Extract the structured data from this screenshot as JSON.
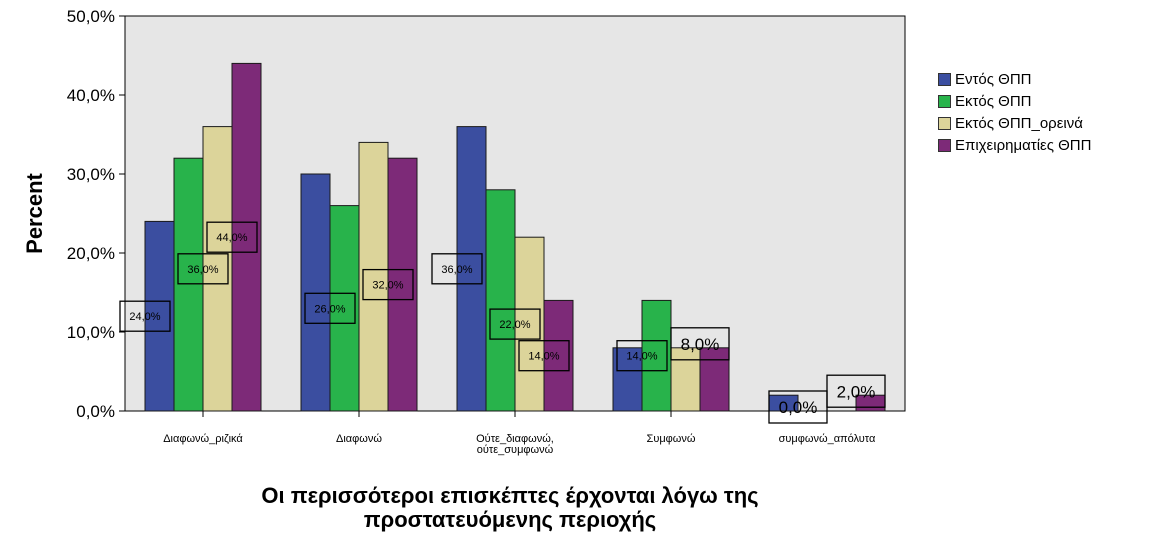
{
  "chart_data": {
    "type": "bar",
    "ylabel": "Percent",
    "xlabel_lines": [
      "Οι περισσότεροι επισκέπτες έρχονται λόγω της",
      "προστατευόμενης περιοχής"
    ],
    "ylim": [
      0,
      50
    ],
    "yticks": [
      "0,0%",
      "10,0%",
      "20,0%",
      "30,0%",
      "40,0%",
      "50,0%"
    ],
    "categories": [
      [
        "Διαφωνώ_ριζικά"
      ],
      [
        "Διαφωνώ"
      ],
      [
        "Ούτε_διαφωνώ,",
        "ούτε_συμφωνώ"
      ],
      [
        "Συμφωνώ"
      ],
      [
        "συμφωνώ_απόλυτα"
      ]
    ],
    "series": [
      {
        "name": "Εντός ΘΠΠ",
        "color": "#3b4ea0",
        "values": [
          24,
          30,
          36,
          8,
          2
        ]
      },
      {
        "name": "Εκτός ΘΠΠ",
        "color": "#28b34b",
        "values": [
          32,
          26,
          28,
          14,
          0
        ]
      },
      {
        "name": "Εκτός ΘΠΠ_ορεινά",
        "color": "#dcd49a",
        "values": [
          36,
          34,
          22,
          8,
          0
        ]
      },
      {
        "name": "Επιχειρηματίες ΘΠΠ",
        "color": "#7d2a78",
        "values": [
          44,
          32,
          14,
          8,
          2
        ]
      }
    ],
    "data_labels": [
      {
        "text": "24,0%",
        "category": 0,
        "series": 0
      },
      {
        "text": "36,0%",
        "category": 0,
        "series": 2
      },
      {
        "text": "44,0%",
        "category": 0,
        "series": 3
      },
      {
        "text": "26,0%",
        "category": 1,
        "series": 1
      },
      {
        "text": "32,0%",
        "category": 1,
        "series": 3
      },
      {
        "text": "36,0%",
        "category": 2,
        "series": 0
      },
      {
        "text": "22,0%",
        "category": 2,
        "series": 2
      },
      {
        "text": "14,0%",
        "category": 2,
        "series": 3
      },
      {
        "text": "14,0%",
        "category": 3,
        "series": 1
      },
      {
        "text": "8,0%",
        "category": 3,
        "series": 3
      },
      {
        "text": "0,0%",
        "category": 4,
        "series": 1
      },
      {
        "text": "2,0%",
        "category": 4,
        "series": 3
      }
    ],
    "plot_background": "#e6e6e6",
    "grid": false,
    "legend_position": "right"
  }
}
